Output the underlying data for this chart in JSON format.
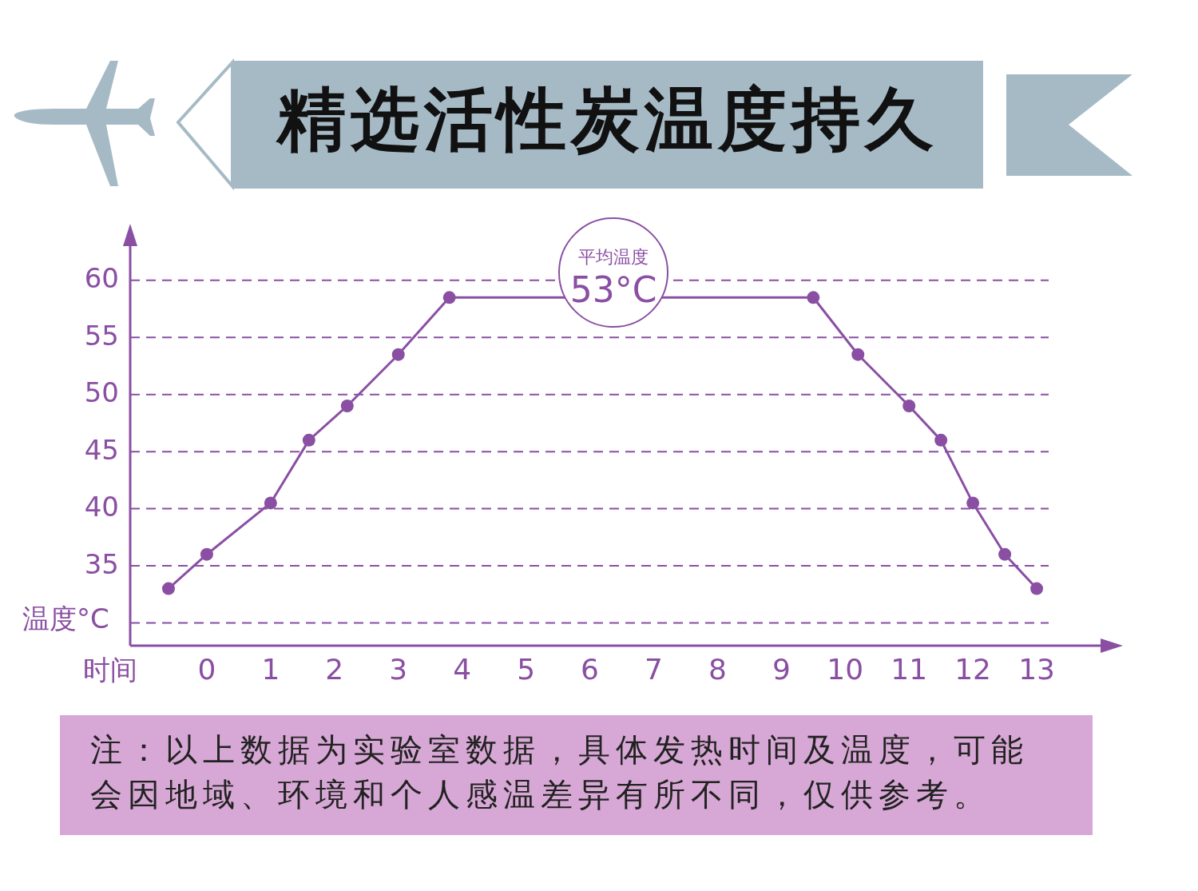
{
  "chart_data": {
    "type": "line",
    "title": "精选活性炭温度持久",
    "xlabel": "时间",
    "ylabel": "温度°C",
    "x": [
      -0.6,
      0,
      1,
      1.6,
      2.2,
      3,
      3.8,
      9.5,
      10.2,
      11,
      11.5,
      12,
      12.5,
      13
    ],
    "series": [
      {
        "color": "#8a4fa3",
        "values": [
          33,
          36,
          40.5,
          46,
          49,
          53.5,
          58.5,
          58.5,
          53.5,
          49,
          46,
          40.5,
          36,
          33
        ]
      }
    ],
    "xlim": [
      -1.2,
      14
    ],
    "xticks": [
      0,
      1,
      2,
      3,
      4,
      5,
      6,
      7,
      8,
      9,
      10,
      11,
      12,
      13
    ],
    "ylim": [
      28,
      63
    ],
    "yticks": [
      {
        "value": 30,
        "label": null
      },
      35,
      40,
      45,
      50,
      55,
      60
    ],
    "grid": "y",
    "marker": "circle",
    "line_style": "solid",
    "annotations": [
      "平均温度",
      "53°C",
      "注：以上数据为实验室数据，具体发热时间及温度，可能会因地域、环境和个人感温差异有所不同，仅供参考。"
    ]
  }
}
